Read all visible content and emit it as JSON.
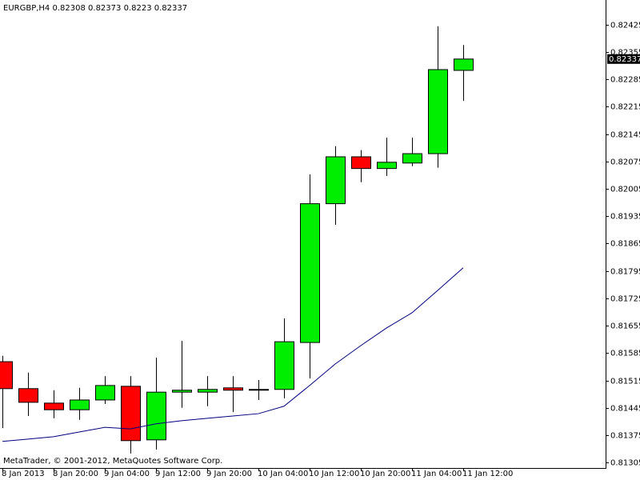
{
  "chart_data": {
    "type": "candlestick",
    "title": "EURGBP,H4",
    "footer": "MetaTrader, © 2001-2012, MetaQuotes Software Corp.",
    "categories": [
      "8 Jan 2013",
      null,
      "8 Jan 20:00",
      null,
      "9 Jan 04:00",
      null,
      "9 Jan 12:00",
      null,
      "9 Jan 20:00",
      null,
      "10 Jan 04:00",
      null,
      "10 Jan 12:00",
      null,
      "10 Jan 20:00",
      null,
      "11 Jan 04:00",
      null,
      "11 Jan 12:00"
    ],
    "open": [
      0.81563,
      0.81494,
      0.81457,
      0.8144,
      0.81465,
      0.815,
      0.81363,
      0.81485,
      0.81485,
      0.81496,
      0.8149,
      0.81492,
      0.81612,
      0.81967,
      0.82087,
      0.82057,
      0.82071,
      0.82095,
      0.82308
    ],
    "high": [
      0.81578,
      0.81535,
      0.8149,
      0.81496,
      0.81526,
      0.81526,
      0.81573,
      0.81616,
      0.81526,
      0.81526,
      0.81516,
      0.81674,
      0.82042,
      0.82114,
      0.82104,
      0.82136,
      0.82136,
      0.82421,
      0.82373
    ],
    "low": [
      0.81393,
      0.81424,
      0.81418,
      0.81414,
      0.81455,
      0.81328,
      0.81338,
      0.81445,
      0.81449,
      0.81434,
      0.81465,
      0.81469,
      0.8152,
      0.81913,
      0.82022,
      0.82038,
      0.82063,
      0.82059,
      0.8223
    ],
    "close": [
      0.81494,
      0.81459,
      0.8144,
      0.81465,
      0.81502,
      0.81361,
      0.81485,
      0.8149,
      0.81492,
      0.8149,
      0.81492,
      0.81614,
      0.81967,
      0.82087,
      0.82057,
      0.82073,
      0.82095,
      0.8231,
      0.82337
    ],
    "up_color": "#00ee00",
    "down_color": "#ff0000",
    "ma_color": "#000080",
    "ma_values": [
      0.81359,
      0.81365,
      0.81371,
      0.81383,
      0.81395,
      0.81391,
      0.81404,
      0.81412,
      0.81418,
      0.81424,
      0.8143,
      0.81449,
      0.81502,
      0.81557,
      0.81604,
      0.81649,
      0.81688,
      0.81745,
      0.81803
    ],
    "ylim": [
      0.81291,
      0.82488
    ],
    "yticks": [
      0.82425,
      0.82355,
      0.82285,
      0.82215,
      0.82145,
      0.82075,
      0.82005,
      0.81935,
      0.81865,
      0.81795,
      0.81725,
      0.81655,
      0.81585,
      0.81515,
      0.81445,
      0.81375,
      0.81305
    ]
  }
}
